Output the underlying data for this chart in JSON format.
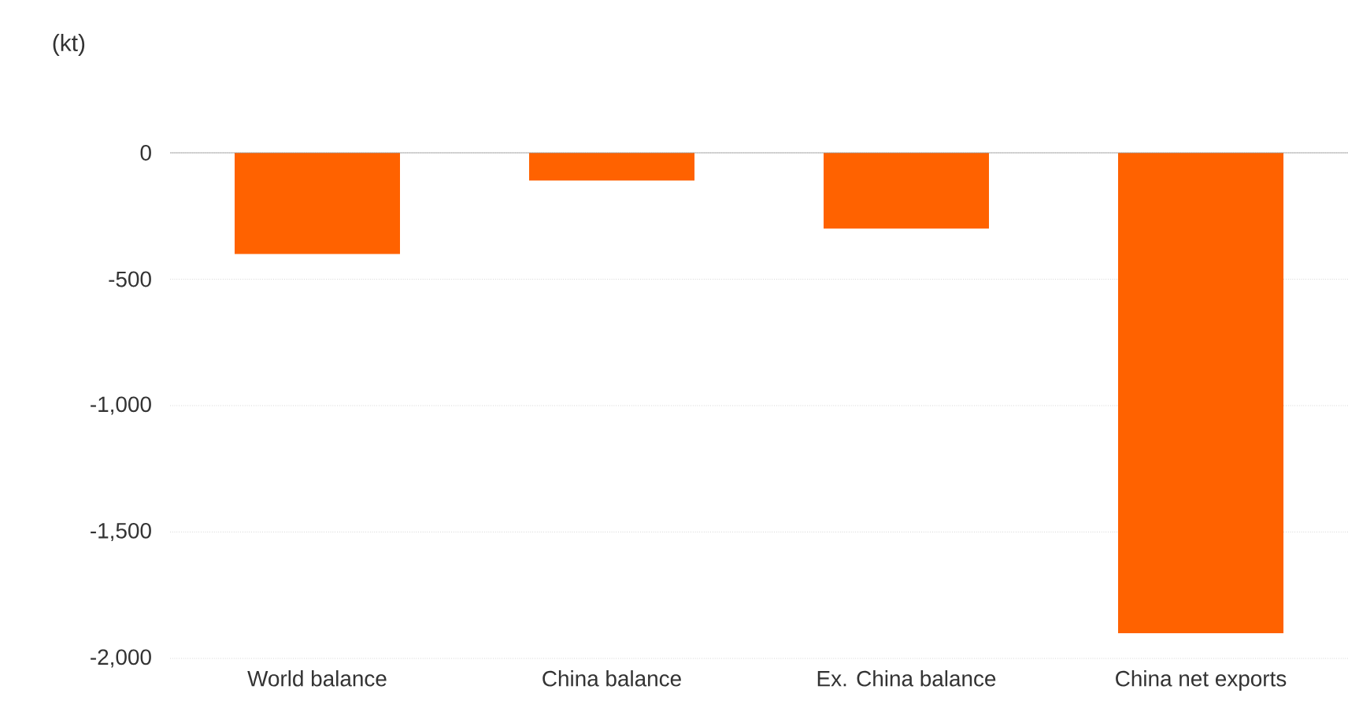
{
  "chart_data": {
    "type": "bar",
    "ylabel": "(kt)",
    "categories": [
      "World balance",
      "China balance",
      "Ex. China balance",
      "China net exports"
    ],
    "values": [
      -400,
      -110,
      -300,
      -1900
    ],
    "color": "#ff6200",
    "ylim": [
      -2000,
      0
    ],
    "yticks": [
      {
        "value": -2000,
        "label": "-2,000"
      },
      {
        "value": -1500,
        "label": "-1,500"
      },
      {
        "value": -1000,
        "label": "-1,000"
      },
      {
        "value": -500,
        "label": "-500"
      },
      0
    ],
    "grid": "y"
  }
}
